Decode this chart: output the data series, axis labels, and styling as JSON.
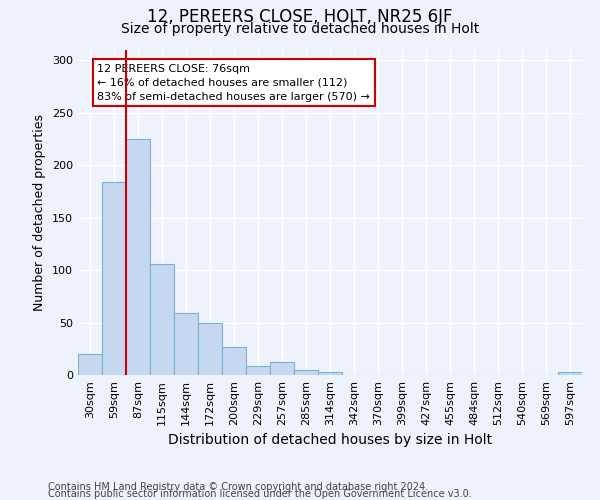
{
  "title1": "12, PEREERS CLOSE, HOLT, NR25 6JF",
  "title2": "Size of property relative to detached houses in Holt",
  "xlabel": "Distribution of detached houses by size in Holt",
  "ylabel": "Number of detached properties",
  "bar_values": [
    20,
    184,
    225,
    106,
    59,
    50,
    27,
    9,
    12,
    5,
    3,
    0,
    0,
    0,
    0,
    0,
    0,
    0,
    0,
    0,
    3
  ],
  "bar_labels": [
    "30sqm",
    "59sqm",
    "87sqm",
    "115sqm",
    "144sqm",
    "172sqm",
    "200sqm",
    "229sqm",
    "257sqm",
    "285sqm",
    "314sqm",
    "342sqm",
    "370sqm",
    "399sqm",
    "427sqm",
    "455sqm",
    "484sqm",
    "512sqm",
    "540sqm",
    "569sqm",
    "597sqm"
  ],
  "bar_color": "#c5d8f0",
  "bar_edge_color": "#7bafd4",
  "background_color": "#eef2fa",
  "grid_color": "#ffffff",
  "vline_x_index": 2,
  "vline_color": "#cc0000",
  "annotation_text": "12 PEREERS CLOSE: 76sqm\n← 16% of detached houses are smaller (112)\n83% of semi-detached houses are larger (570) →",
  "annotation_box_facecolor": "#ffffff",
  "annotation_box_edgecolor": "#cc0000",
  "footer1": "Contains HM Land Registry data © Crown copyright and database right 2024.",
  "footer2": "Contains public sector information licensed under the Open Government Licence v3.0.",
  "ylim": [
    0,
    310
  ],
  "yticks": [
    0,
    50,
    100,
    150,
    200,
    250,
    300
  ],
  "title1_fontsize": 12,
  "title2_fontsize": 10,
  "xlabel_fontsize": 10,
  "ylabel_fontsize": 9,
  "tick_fontsize": 8,
  "annotation_fontsize": 8,
  "footer_fontsize": 7
}
